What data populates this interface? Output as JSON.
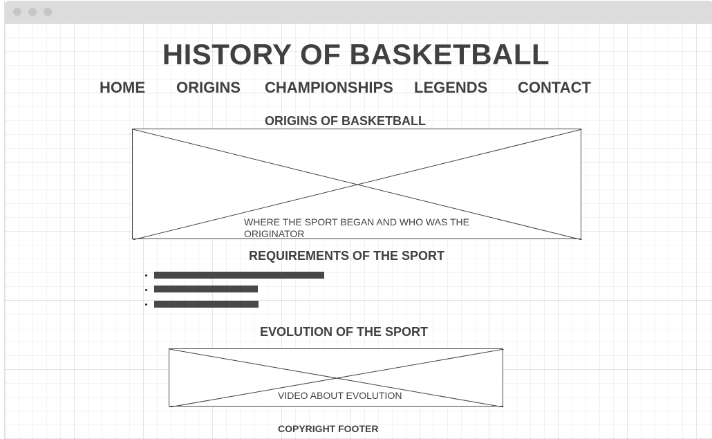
{
  "site": {
    "title": "HISTORY OF BASKETBALL"
  },
  "nav": {
    "items": [
      {
        "label": "HOME"
      },
      {
        "label": "ORIGINS"
      },
      {
        "label": "CHAMPIONSHIPS"
      },
      {
        "label": "LEGENDS"
      },
      {
        "label": "CONTACT"
      }
    ]
  },
  "origins": {
    "heading": "ORIGINS OF BASKETBALL",
    "caption": "WHERE THE SPORT BEGAN AND WHO WAS THE ORIGINATOR"
  },
  "requirements": {
    "heading": "REQUIREMENTS OF THE SPORT",
    "items": [
      {
        "fill": 1.0
      },
      {
        "fill": 0.61
      },
      {
        "fill": 0.615
      }
    ]
  },
  "evolution": {
    "heading": "EVOLUTION OF THE SPORT",
    "caption": "VIDEO ABOUT EVOLUTION"
  },
  "footer": {
    "text": "COPYRIGHT FOOTER"
  },
  "colors": {
    "text": "#404040",
    "titlebar": "#dcdcdc",
    "grid": "#ebebeb"
  }
}
